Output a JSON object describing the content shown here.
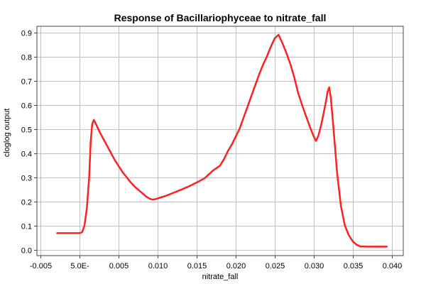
{
  "chart_data": {
    "type": "line",
    "title": "Response of Bacillariophyceae to nitrate_fall",
    "xlabel": "nitrate_fall",
    "ylabel": "cloglog output",
    "xlim": [
      -0.0055,
      0.0415
    ],
    "ylim": [
      -0.025,
      0.925
    ],
    "grid": true,
    "x_ticks": [
      -0.005,
      0.0,
      0.005,
      0.01,
      0.015,
      0.02,
      0.025,
      0.03,
      0.035,
      0.04
    ],
    "x_tick_labels": [
      "-0.005",
      "5.0E-",
      "0.005",
      "0.010",
      "0.015",
      "0.020",
      "0.025",
      "0.030",
      "0.035",
      "0.040"
    ],
    "y_ticks": [
      0.0,
      0.1,
      0.2,
      0.3,
      0.4,
      0.5,
      0.6,
      0.7,
      0.8,
      0.9
    ],
    "y_tick_labels": [
      "0.0",
      "0.1",
      "0.2",
      "0.3",
      "0.4",
      "0.5",
      "0.6",
      "0.7",
      "0.8",
      "0.9"
    ],
    "series": [
      {
        "color": "#ff2020",
        "x": [
          -0.0029,
          -0.0015,
          0.0,
          0.0003,
          0.0006,
          0.0009,
          0.0012,
          0.0014,
          0.0016,
          0.0018,
          0.002,
          0.0025,
          0.003,
          0.0035,
          0.004,
          0.0045,
          0.005,
          0.0055,
          0.006,
          0.0065,
          0.007,
          0.0075,
          0.008,
          0.0085,
          0.009,
          0.0093,
          0.0096,
          0.01,
          0.011,
          0.012,
          0.013,
          0.014,
          0.015,
          0.016,
          0.017,
          0.018,
          0.0185,
          0.019,
          0.0195,
          0.02,
          0.0205,
          0.021,
          0.0215,
          0.022,
          0.0225,
          0.023,
          0.0235,
          0.024,
          0.0245,
          0.025,
          0.0255,
          0.026,
          0.0265,
          0.027,
          0.0275,
          0.028,
          0.0285,
          0.029,
          0.0295,
          0.03,
          0.0303,
          0.0306,
          0.031,
          0.0315,
          0.0318,
          0.032,
          0.0322,
          0.0325,
          0.033,
          0.0335,
          0.034,
          0.0345,
          0.035,
          0.0355,
          0.036,
          0.037,
          0.038,
          0.039,
          0.0394
        ],
        "y": [
          0.068,
          0.068,
          0.068,
          0.072,
          0.1,
          0.17,
          0.3,
          0.45,
          0.52,
          0.537,
          0.525,
          0.49,
          0.46,
          0.43,
          0.4,
          0.37,
          0.345,
          0.32,
          0.3,
          0.28,
          0.262,
          0.248,
          0.234,
          0.22,
          0.21,
          0.207,
          0.208,
          0.212,
          0.222,
          0.235,
          0.248,
          0.262,
          0.278,
          0.295,
          0.325,
          0.348,
          0.375,
          0.408,
          0.435,
          0.468,
          0.5,
          0.545,
          0.59,
          0.635,
          0.68,
          0.725,
          0.765,
          0.8,
          0.84,
          0.875,
          0.89,
          0.855,
          0.815,
          0.77,
          0.715,
          0.65,
          0.6,
          0.555,
          0.51,
          0.47,
          0.45,
          0.47,
          0.52,
          0.6,
          0.655,
          0.672,
          0.63,
          0.52,
          0.32,
          0.18,
          0.1,
          0.06,
          0.035,
          0.02,
          0.013,
          0.012,
          0.012,
          0.012,
          0.012
        ]
      }
    ]
  }
}
